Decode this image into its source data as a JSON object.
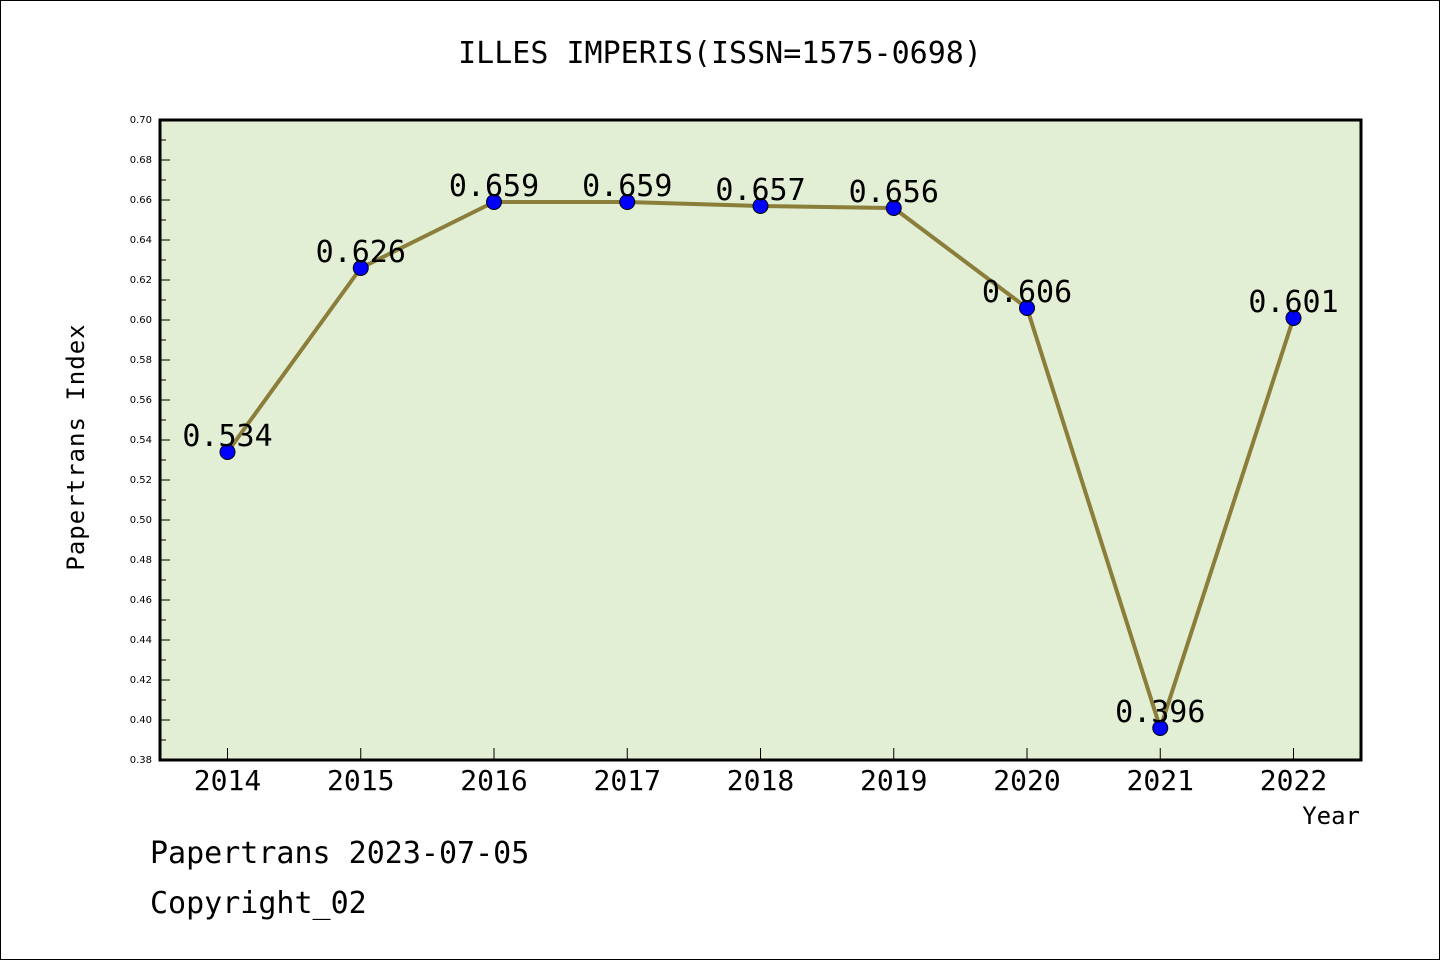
{
  "chart_data": {
    "type": "line",
    "title": "ILLES IMPERIS(ISSN=1575-0698)",
    "xlabel": "Year",
    "ylabel": "Papertrans Index",
    "categories": [
      "2014",
      "2015",
      "2016",
      "2017",
      "2018",
      "2019",
      "2020",
      "2021",
      "2022"
    ],
    "series": [
      {
        "values": [
          0.534,
          0.626,
          0.659,
          0.659,
          0.657,
          0.656,
          0.606,
          0.396,
          0.601
        ],
        "labels": [
          "0.534",
          "0.626",
          "0.659",
          "0.659",
          "0.657",
          "0.656",
          "0.606",
          "0.396",
          "0.601"
        ]
      }
    ],
    "ylim": [
      0.38,
      0.7
    ],
    "yticks": [
      "0.38",
      "0.40",
      "0.42",
      "0.44",
      "0.46",
      "0.48",
      "0.50",
      "0.52",
      "0.54",
      "0.56",
      "0.58",
      "0.60",
      "0.62",
      "0.64",
      "0.66",
      "0.68",
      "0.70"
    ],
    "grid": false,
    "legend": "none"
  },
  "footer": {
    "date": "Papertrans 2023-07-05",
    "copyright": "Copyright_02"
  },
  "colors": {
    "plot_background": "#e2efd5",
    "line": "#8b7d3a",
    "marker": "#0000ff",
    "axis": "#000000"
  }
}
